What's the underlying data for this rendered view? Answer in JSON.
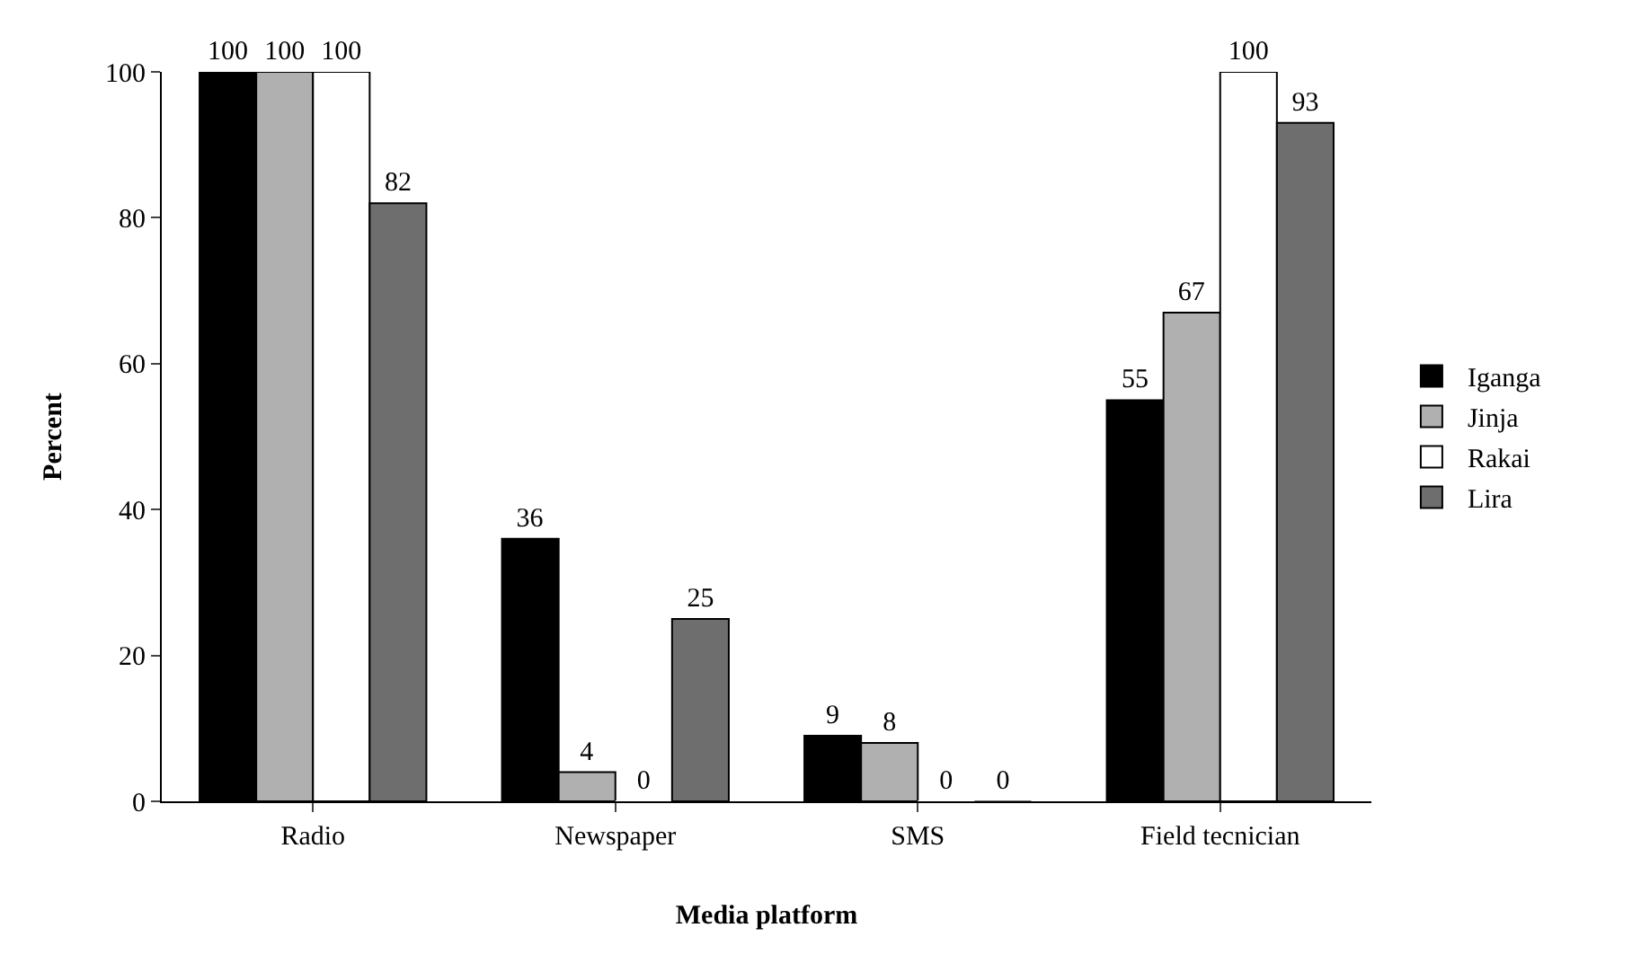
{
  "chart_data": {
    "type": "bar",
    "xlabel": "Media platform",
    "ylabel": "Percent",
    "categories": [
      "Radio",
      "Newspaper",
      "SMS",
      "Field tecnician"
    ],
    "series": [
      {
        "name": "Iganga",
        "color": "#000000",
        "values": [
          100,
          36,
          9,
          55
        ]
      },
      {
        "name": "Jinja",
        "color": "#b0b0b0",
        "values": [
          100,
          4,
          8,
          67
        ]
      },
      {
        "name": "Rakai",
        "color": "#ffffff",
        "values": [
          100,
          0,
          0,
          100
        ]
      },
      {
        "name": "Lira",
        "color": "#6e6e6e",
        "values": [
          82,
          25,
          0,
          93
        ]
      }
    ],
    "ylim": [
      0,
      100
    ],
    "yticks": [
      0,
      20,
      40,
      60,
      80,
      100
    ],
    "grid": false,
    "legend": "right",
    "data_labels": true
  }
}
